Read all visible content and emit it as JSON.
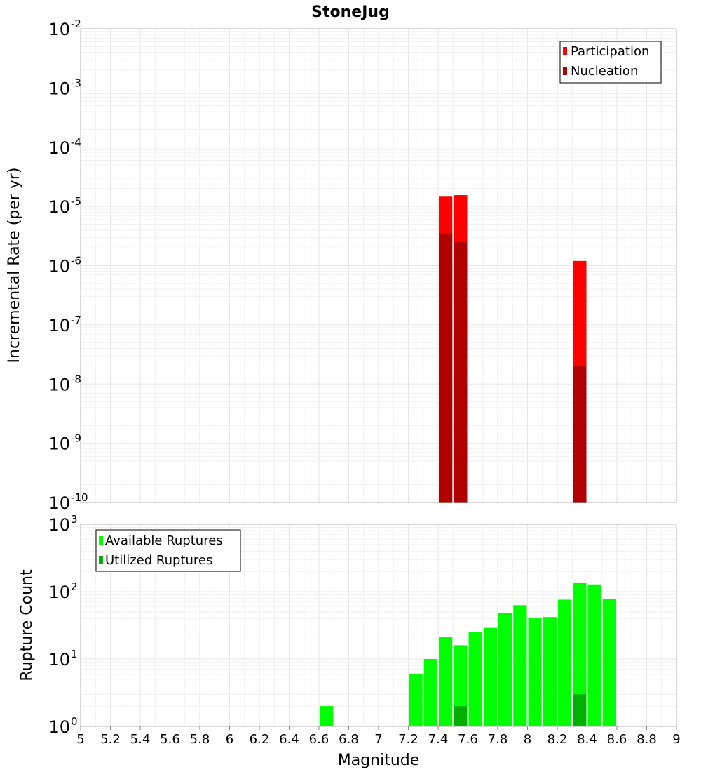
{
  "chart_data": [
    {
      "type": "bar",
      "title": "StoneJug",
      "ylabel": "Incremental Rate (per yr)",
      "xlabel": "",
      "yscale": "log",
      "ylim_exp": [
        -10,
        -2
      ],
      "xlim": [
        5,
        9
      ],
      "grid": true,
      "legend_position": "top-right",
      "series": [
        {
          "name": "Participation",
          "color": "#ff0000",
          "points": [
            {
              "x": 7.45,
              "y": 1.5e-05
            },
            {
              "x": 7.55,
              "y": 1.55e-05
            },
            {
              "x": 8.35,
              "y": 1.2e-06
            }
          ]
        },
        {
          "name": "Nucleation",
          "color": "#b00000",
          "points": [
            {
              "x": 7.45,
              "y": 3.5e-06
            },
            {
              "x": 7.55,
              "y": 2.5e-06
            },
            {
              "x": 8.35,
              "y": 2e-08
            }
          ]
        }
      ]
    },
    {
      "type": "bar",
      "title": "",
      "ylabel": "Rupture Count",
      "xlabel": "Magnitude",
      "yscale": "log",
      "ylim_exp": [
        0,
        3
      ],
      "xlim": [
        5,
        9
      ],
      "grid": true,
      "legend_position": "top-left",
      "x_ticks": [
        "5",
        "5.2",
        "5.4",
        "5.6",
        "5.8",
        "6",
        "6.2",
        "6.4",
        "6.6",
        "6.8",
        "7",
        "7.2",
        "7.4",
        "7.6",
        "7.8",
        "8",
        "8.2",
        "8.4",
        "8.6",
        "8.8",
        "9"
      ],
      "series": [
        {
          "name": "Available Ruptures",
          "color": "#00ff00",
          "points": [
            {
              "x": 6.65,
              "y": 2
            },
            {
              "x": 6.85,
              "y": 1
            },
            {
              "x": 7.25,
              "y": 6
            },
            {
              "x": 7.35,
              "y": 10
            },
            {
              "x": 7.45,
              "y": 21
            },
            {
              "x": 7.55,
              "y": 16
            },
            {
              "x": 7.65,
              "y": 25
            },
            {
              "x": 7.75,
              "y": 29
            },
            {
              "x": 7.85,
              "y": 48
            },
            {
              "x": 7.95,
              "y": 63
            },
            {
              "x": 8.05,
              "y": 41
            },
            {
              "x": 8.15,
              "y": 42
            },
            {
              "x": 8.25,
              "y": 76
            },
            {
              "x": 8.35,
              "y": 135
            },
            {
              "x": 8.45,
              "y": 128
            },
            {
              "x": 8.55,
              "y": 77
            }
          ]
        },
        {
          "name": "Utilized Ruptures",
          "color": "#00b000",
          "points": [
            {
              "x": 7.45,
              "y": 1
            },
            {
              "x": 7.55,
              "y": 2
            },
            {
              "x": 8.35,
              "y": 3
            }
          ]
        }
      ]
    }
  ]
}
